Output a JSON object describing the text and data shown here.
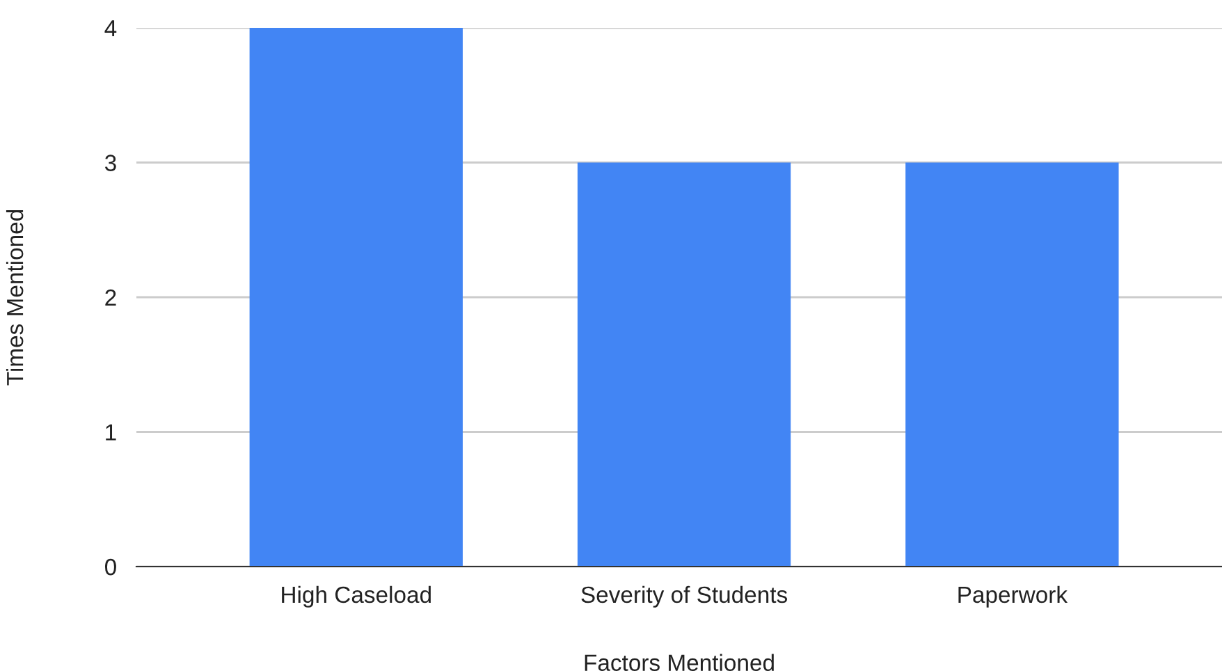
{
  "chart_data": {
    "type": "bar",
    "categories": [
      "High Caseload",
      "Severity of Students",
      "Paperwork"
    ],
    "values": [
      4,
      3,
      3
    ],
    "color": "#4285f4",
    "xlabel": "Factors Mentioned",
    "ylabel": "Times Mentioned",
    "ylim": [
      0,
      4
    ],
    "yticks": [
      0,
      1,
      2,
      3,
      4
    ],
    "grid": "y"
  }
}
